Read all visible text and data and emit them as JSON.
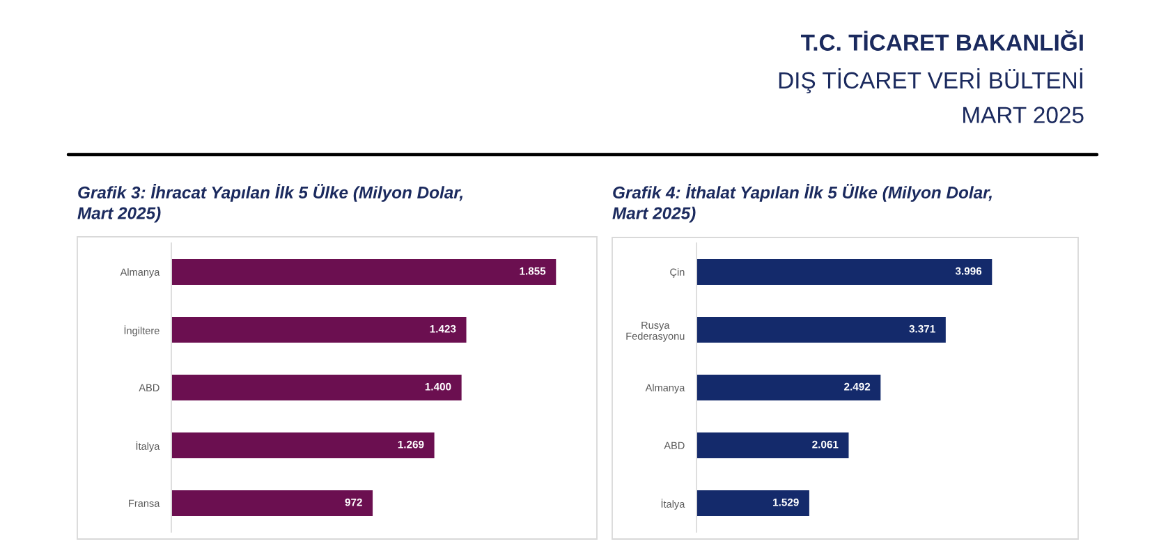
{
  "chart_data": [
    {
      "type": "other",
      "title": "T.C. TİCARET BAKANLIĞI",
      "subtitle": "DIŞ TİCARET VERİ BÜLTENİ",
      "annotations": [
        "MART 2025"
      ]
    },
    {
      "type": "bar",
      "orientation": "horizontal",
      "title": "Grafik 3: İhracat Yapılan İlk 5 Ülke (Milyon Dolar,\nMart 2025)",
      "categories": [
        "Almanya",
        "İngiltere",
        "ABD",
        "İtalya",
        "Fransa"
      ],
      "values": [
        1855,
        1423,
        1400,
        1269,
        972
      ],
      "value_labels": [
        "1.855",
        "1.423",
        "1.400",
        "1.269",
        "972"
      ],
      "color": "#6b0f50"
    },
    {
      "type": "bar",
      "orientation": "horizontal",
      "title": "Grafik 4: İthalat Yapılan İlk 5 Ülke (Milyon Dolar,\nMart 2025)",
      "categories": [
        "Çin",
        "Rusya\nFederasyonu",
        "Almanya",
        "ABD",
        "İtalya"
      ],
      "values": [
        3996,
        3371,
        2492,
        2061,
        1529
      ],
      "value_labels": [
        "3.996",
        "3.371",
        "2.492",
        "2.061",
        "1.529"
      ],
      "color": "#142a6b"
    }
  ]
}
